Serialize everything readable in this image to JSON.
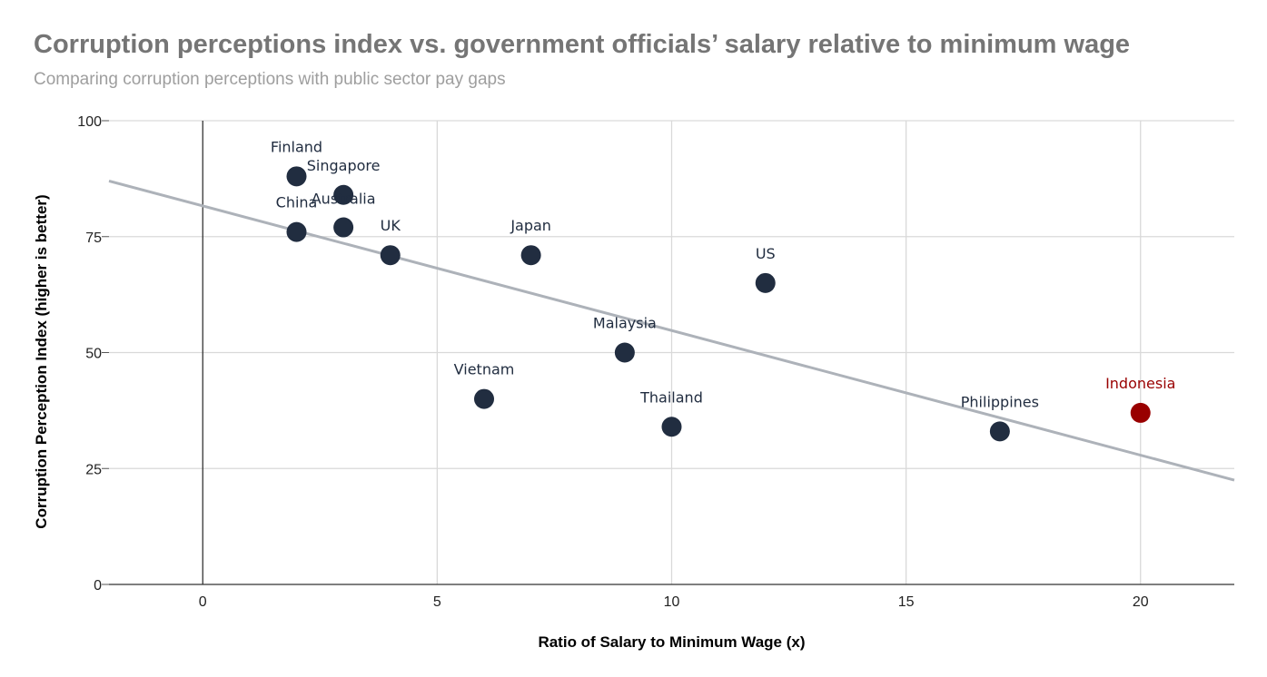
{
  "chart_data": {
    "type": "scatter",
    "title": "Corruption perceptions index vs. government officials’ salary relative to minimum wage",
    "subtitle": "Comparing corruption perceptions with public sector pay gaps",
    "xlabel": "Ratio of Salary to Minimum Wage (x)",
    "ylabel": "Corruption Perception Index (higher is better)",
    "xlim": [
      -2,
      22
    ],
    "ylim": [
      0,
      100
    ],
    "xticks": [
      0,
      5,
      10,
      15,
      20
    ],
    "yticks": [
      0,
      25,
      50,
      75,
      100
    ],
    "grid": true,
    "points": [
      {
        "label": "Finland",
        "x": 2,
        "y": 88
      },
      {
        "label": "Singapore",
        "x": 3,
        "y": 84
      },
      {
        "label": "China",
        "x": 2,
        "y": 76
      },
      {
        "label": "Australia",
        "x": 3,
        "y": 77
      },
      {
        "label": "UK",
        "x": 4,
        "y": 71
      },
      {
        "label": "Japan",
        "x": 7,
        "y": 71
      },
      {
        "label": "US",
        "x": 12,
        "y": 65
      },
      {
        "label": "Malaysia",
        "x": 9,
        "y": 50
      },
      {
        "label": "Vietnam",
        "x": 6,
        "y": 40
      },
      {
        "label": "Thailand",
        "x": 10,
        "y": 34
      },
      {
        "label": "Philippines",
        "x": 17,
        "y": 33
      },
      {
        "label": "Indonesia",
        "x": 20,
        "y": 37,
        "highlight": true
      }
    ],
    "trendline": {
      "type": "linear",
      "x_start": -2,
      "y_start": 87,
      "x_end": 22,
      "y_end": 22.5
    },
    "colors": {
      "point": "#212d40",
      "highlight": "#990000",
      "trendline": "#adb2b9"
    }
  }
}
